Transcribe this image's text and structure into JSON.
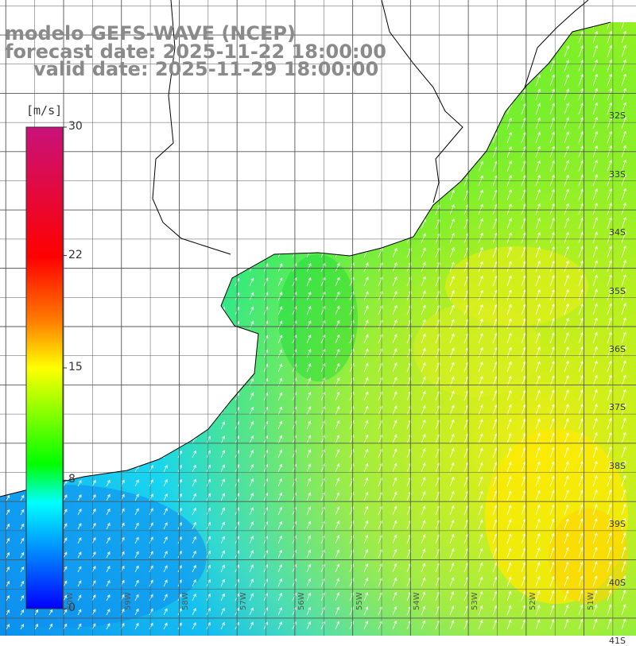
{
  "header": {
    "line1": "modelo GEFS-WAVE (NCEP)",
    "line2": "forecast date: 2025-11-22 18:00:00",
    "line3": "valid date: 2025-11-29 18:00:00"
  },
  "colorbar": {
    "unit": "[m/s]",
    "ticks": [
      "30",
      "22",
      "15",
      "8",
      "0"
    ],
    "tick_values": [
      30,
      22,
      15,
      8,
      0
    ],
    "colors": [
      "#c8127a",
      "#ff0000",
      "#ff7a00",
      "#ffff00",
      "#00ff00",
      "#00ffff",
      "#0000ff"
    ]
  },
  "lat_labels": [
    {
      "text": "32S",
      "lat": -32
    },
    {
      "text": "33S",
      "lat": -33
    },
    {
      "text": "34S",
      "lat": -34
    },
    {
      "text": "35S",
      "lat": -35
    },
    {
      "text": "36S",
      "lat": -36
    },
    {
      "text": "37S",
      "lat": -37
    },
    {
      "text": "38S",
      "lat": -38
    },
    {
      "text": "39S",
      "lat": -39
    },
    {
      "text": "40S",
      "lat": -40
    },
    {
      "text": "41S",
      "lat": -41
    }
  ],
  "lon_labels": [
    {
      "text": "60W",
      "lon": -60
    },
    {
      "text": "59W",
      "lon": -59
    },
    {
      "text": "58W",
      "lon": -58
    },
    {
      "text": "57W",
      "lon": -57
    },
    {
      "text": "56W",
      "lon": -56
    },
    {
      "text": "55W",
      "lon": -55
    },
    {
      "text": "54W",
      "lon": -54
    },
    {
      "text": "53W",
      "lon": -53
    },
    {
      "text": "52W",
      "lon": -52
    },
    {
      "text": "51W",
      "lon": -51
    }
  ],
  "map": {
    "lon_range": [
      -61.1,
      -50.1
    ],
    "lat_range": [
      -41.3,
      -30.4
    ],
    "land_color": "#ffffff",
    "coast_color": "#000000",
    "grid_color": "#555555"
  }
}
